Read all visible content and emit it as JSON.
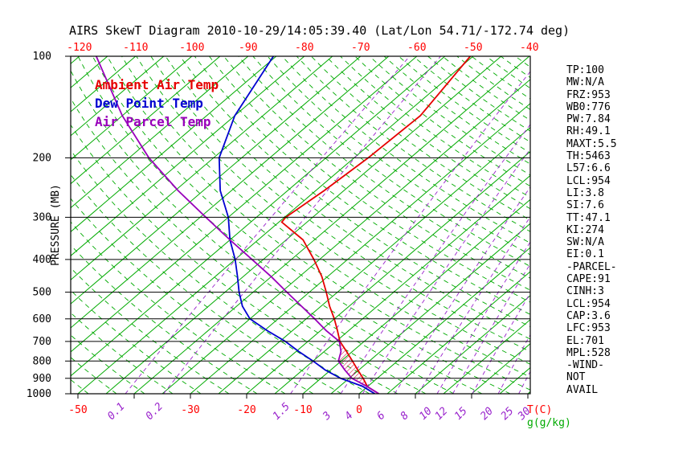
{
  "title": "AIRS SkewT Diagram 2010-10-29/14:05:39.40 (Lat/Lon 54.71/-172.74 deg)",
  "legend": {
    "items": [
      {
        "label": "Ambient Air Temp",
        "color": "#e60000"
      },
      {
        "label": "Dew Point Temp",
        "color": "#0000d0"
      },
      {
        "label": "Air Parcel Temp",
        "color": "#9900bb"
      }
    ]
  },
  "axes": {
    "pressure_label": "PRESSURE (MB)",
    "temp_unit_label": "T(C)",
    "mixing_unit_label": "g(g/kg)"
  },
  "stats_panel": {
    "lines": [
      "TP:100",
      "MW:N/A",
      "FRZ:953",
      "WB0:776",
      "PW:7.84",
      "RH:49.1",
      "MAXT:5.5",
      "TH:5463",
      "L57:6.6",
      "LCL:954",
      "LI:3.8",
      "SI:7.6",
      "TT:47.1",
      "KI:274",
      "SW:N/A",
      "EI:0.1",
      "-PARCEL-",
      "CAPE:91",
      "CINH:3",
      "LCL:954",
      "CAP:3.6",
      "LFC:953",
      "EL:701",
      "MPL:528",
      "-WIND-",
      "NOT",
      "AVAIL"
    ]
  },
  "chart_data": {
    "type": "line",
    "variant": "skew-t-log-p",
    "title": "AIRS SkewT Diagram 2010-10-29/14:05:39.40 (Lat/Lon 54.71/-172.74 deg)",
    "xlabel": "T(C)",
    "ylabel": "PRESSURE (MB)",
    "grid": true,
    "pressure_range_mb": [
      100,
      1000
    ],
    "pressure_ticks": [
      100,
      200,
      300,
      400,
      500,
      600,
      700,
      800,
      900,
      1000
    ],
    "top_temp_ticks": [
      -120,
      -110,
      -100,
      -90,
      -80,
      -70,
      -60,
      -50,
      -40
    ],
    "bottom_temp_ticks": [
      -50,
      -30,
      -20,
      -10,
      0
    ],
    "mixing_ratios": [
      0.1,
      0.2,
      1.5,
      3,
      4,
      6,
      8,
      10,
      12,
      15,
      20,
      25,
      30
    ],
    "isotherms_c": {
      "min": -125,
      "max": 30,
      "step": 5
    },
    "dry_adiabats_theta_k": {
      "min": 225,
      "max": 450,
      "step": 5
    },
    "colors": {
      "isotherm": "#00aa00",
      "dry_adiabat": "#00aa00",
      "mixing_ratio": "#9922cc",
      "hatch": "#d40030",
      "frame": "#000000",
      "temp_tick": "#ff0000"
    },
    "series": [
      {
        "id": "ambient-temp",
        "name": "Ambient Air Temp",
        "color": "#e60000",
        "points_p_mb_t_c": [
          [
            1000,
            3.5
          ],
          [
            953,
            0
          ],
          [
            900,
            -2.5
          ],
          [
            850,
            -5.2
          ],
          [
            800,
            -8
          ],
          [
            750,
            -11
          ],
          [
            700,
            -14.3
          ],
          [
            650,
            -17
          ],
          [
            600,
            -20
          ],
          [
            550,
            -23.5
          ],
          [
            500,
            -27
          ],
          [
            450,
            -31
          ],
          [
            400,
            -36
          ],
          [
            350,
            -42
          ],
          [
            310,
            -49.5
          ],
          [
            300,
            -49.8
          ],
          [
            250,
            -48.5
          ],
          [
            200,
            -47.5
          ],
          [
            150,
            -47
          ],
          [
            100,
            -50.5
          ]
        ]
      },
      {
        "id": "dew-point",
        "name": "Dew Point Temp",
        "color": "#0000d0",
        "points_p_mb_t_c": [
          [
            1000,
            2.8
          ],
          [
            950,
            -1
          ],
          [
            900,
            -6.5
          ],
          [
            850,
            -11
          ],
          [
            800,
            -15
          ],
          [
            750,
            -19.5
          ],
          [
            700,
            -24
          ],
          [
            650,
            -29.5
          ],
          [
            600,
            -35
          ],
          [
            550,
            -39
          ],
          [
            500,
            -42.5
          ],
          [
            450,
            -46
          ],
          [
            400,
            -50
          ],
          [
            350,
            -55
          ],
          [
            300,
            -60
          ],
          [
            250,
            -67
          ],
          [
            200,
            -74
          ],
          [
            150,
            -80
          ],
          [
            100,
            -85.5
          ]
        ]
      },
      {
        "id": "parcel-temp",
        "name": "Air Parcel Temp",
        "color": "#9900bb",
        "points_p_mb_t_c": [
          [
            1000,
            3.5
          ],
          [
            953,
            0
          ],
          [
            900,
            -4.5
          ],
          [
            850,
            -7.5
          ],
          [
            800,
            -10.5
          ],
          [
            750,
            -12
          ],
          [
            700,
            -14.4
          ],
          [
            650,
            -19
          ],
          [
            600,
            -23.5
          ],
          [
            550,
            -28.5
          ],
          [
            500,
            -34
          ],
          [
            450,
            -40
          ],
          [
            400,
            -47
          ],
          [
            350,
            -55
          ],
          [
            300,
            -64
          ],
          [
            250,
            -74.5
          ],
          [
            200,
            -86.5
          ],
          [
            150,
            -100
          ],
          [
            100,
            -117
          ]
        ]
      }
    ],
    "hatch_region": {
      "between": [
        "parcel-temp",
        "ambient-temp"
      ],
      "pressures": [
        953,
        930,
        905,
        880,
        855,
        830,
        805,
        780,
        755,
        730,
        705
      ]
    }
  }
}
